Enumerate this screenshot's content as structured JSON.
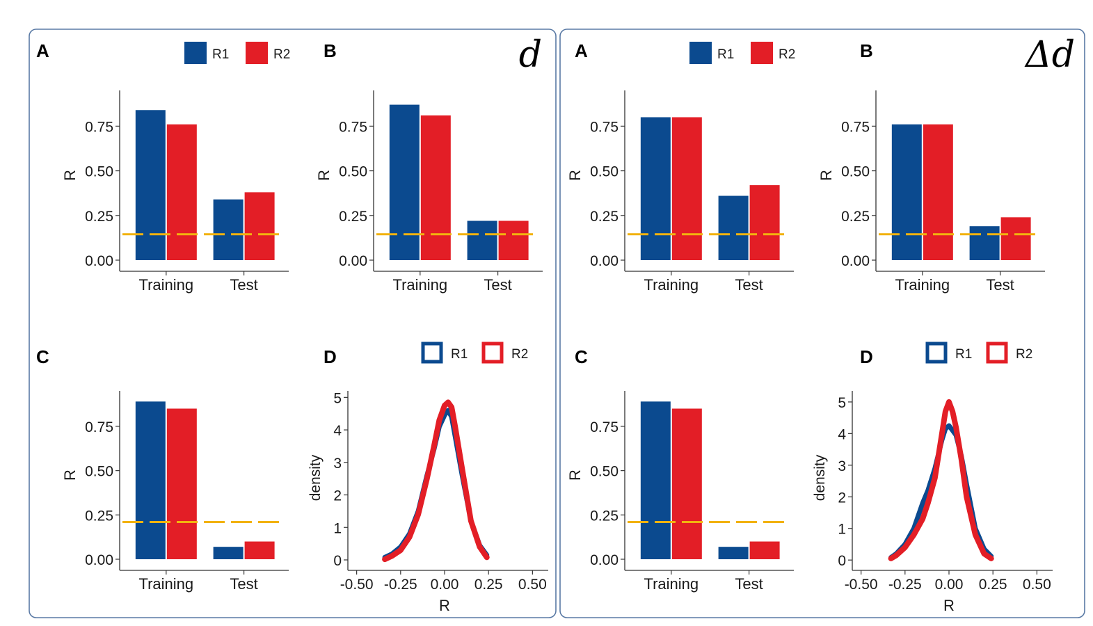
{
  "colors": {
    "r1": "#0b4a8f",
    "r2": "#e31e26",
    "threshold": "#f2b20f",
    "frame": "#5a7aa5",
    "axis": "#333333"
  },
  "groups": [
    {
      "symbol": "d"
    },
    {
      "symbol": "Δd"
    }
  ],
  "chart_data": [
    {
      "group": "d",
      "panel": "A",
      "type": "bar",
      "categories": [
        "Training",
        "Test"
      ],
      "series": [
        {
          "name": "R1",
          "values": [
            0.84,
            0.34
          ]
        },
        {
          "name": "R2",
          "values": [
            0.76,
            0.38
          ]
        }
      ],
      "threshold": 0.145,
      "xlabel": "",
      "ylabel": "R",
      "ylim": [
        0,
        0.95
      ],
      "yticks": [
        "0.00",
        "0.25",
        "0.50",
        "0.75"
      ],
      "legend": [
        "R1",
        "R2"
      ],
      "legend_placement": "top-right"
    },
    {
      "group": "d",
      "panel": "B",
      "type": "bar",
      "categories": [
        "Training",
        "Test"
      ],
      "series": [
        {
          "name": "R1",
          "values": [
            0.87,
            0.22
          ]
        },
        {
          "name": "R2",
          "values": [
            0.81,
            0.22
          ]
        }
      ],
      "threshold": 0.145,
      "xlabel": "",
      "ylabel": "R",
      "ylim": [
        0,
        0.95
      ],
      "yticks": [
        "0.00",
        "0.25",
        "0.50",
        "0.75"
      ]
    },
    {
      "group": "d",
      "panel": "C",
      "type": "bar",
      "categories": [
        "Training",
        "Test"
      ],
      "series": [
        {
          "name": "R1",
          "values": [
            0.89,
            0.07
          ]
        },
        {
          "name": "R2",
          "values": [
            0.85,
            0.1
          ]
        }
      ],
      "threshold": 0.21,
      "xlabel": "",
      "ylabel": "R",
      "ylim": [
        0,
        0.95
      ],
      "yticks": [
        "0.00",
        "0.25",
        "0.50",
        "0.75"
      ]
    },
    {
      "group": "d",
      "panel": "D",
      "type": "line",
      "series": [
        {
          "name": "R1",
          "x": [
            -0.34,
            -0.3,
            -0.25,
            -0.2,
            -0.15,
            -0.1,
            -0.06,
            -0.03,
            0,
            0.02,
            0.04,
            0.06,
            0.1,
            0.15,
            0.2,
            0.24
          ],
          "y": [
            0.08,
            0.18,
            0.4,
            0.8,
            1.5,
            2.6,
            3.4,
            4.1,
            4.45,
            4.6,
            4.4,
            3.8,
            2.6,
            1.2,
            0.45,
            0.15
          ]
        },
        {
          "name": "R2",
          "x": [
            -0.34,
            -0.3,
            -0.25,
            -0.2,
            -0.15,
            -0.1,
            -0.06,
            -0.03,
            0,
            0.02,
            0.04,
            0.06,
            0.1,
            0.15,
            0.2,
            0.24
          ],
          "y": [
            0.02,
            0.12,
            0.3,
            0.7,
            1.4,
            2.5,
            3.5,
            4.3,
            4.75,
            4.85,
            4.7,
            4.1,
            2.8,
            1.2,
            0.4,
            0.08
          ]
        }
      ],
      "xlabel": "R",
      "ylabel": "density",
      "xlim": [
        -0.55,
        0.55
      ],
      "ylim": [
        -0.15,
        5.2
      ],
      "xticks": [
        "-0.50",
        "-0.25",
        "0.00",
        "0.25",
        "0.50"
      ],
      "yticks": [
        "0",
        "1",
        "2",
        "3",
        "4",
        "5"
      ],
      "legend": [
        "R1",
        "R2"
      ],
      "legend_placement": "top-right"
    },
    {
      "group": "Δd",
      "panel": "A",
      "type": "bar",
      "categories": [
        "Training",
        "Test"
      ],
      "series": [
        {
          "name": "R1",
          "values": [
            0.8,
            0.36
          ]
        },
        {
          "name": "R2",
          "values": [
            0.8,
            0.42
          ]
        }
      ],
      "threshold": 0.145,
      "xlabel": "",
      "ylabel": "R",
      "ylim": [
        0,
        0.95
      ],
      "yticks": [
        "0.00",
        "0.25",
        "0.50",
        "0.75"
      ],
      "legend": [
        "R1",
        "R2"
      ],
      "legend_placement": "top-right"
    },
    {
      "group": "Δd",
      "panel": "B",
      "type": "bar",
      "categories": [
        "Training",
        "Test"
      ],
      "series": [
        {
          "name": "R1",
          "values": [
            0.76,
            0.19
          ]
        },
        {
          "name": "R2",
          "values": [
            0.76,
            0.24
          ]
        }
      ],
      "threshold": 0.145,
      "xlabel": "",
      "ylabel": "R",
      "ylim": [
        0,
        0.95
      ],
      "yticks": [
        "0.00",
        "0.25",
        "0.50",
        "0.75"
      ]
    },
    {
      "group": "Δd",
      "panel": "C",
      "type": "bar",
      "categories": [
        "Training",
        "Test"
      ],
      "series": [
        {
          "name": "R1",
          "values": [
            0.89,
            0.07
          ]
        },
        {
          "name": "R2",
          "values": [
            0.85,
            0.1
          ]
        }
      ],
      "threshold": 0.21,
      "xlabel": "",
      "ylabel": "R",
      "ylim": [
        0,
        0.95
      ],
      "yticks": [
        "0.00",
        "0.25",
        "0.50",
        "0.75"
      ]
    },
    {
      "group": "Δd",
      "panel": "D",
      "type": "line",
      "series": [
        {
          "name": "R1",
          "x": [
            -0.33,
            -0.3,
            -0.25,
            -0.2,
            -0.15,
            -0.12,
            -0.08,
            -0.04,
            -0.02,
            0,
            0.02,
            0.04,
            0.07,
            0.1,
            0.15,
            0.2,
            0.24
          ],
          "y": [
            0.08,
            0.2,
            0.5,
            1.0,
            1.8,
            2.2,
            2.9,
            3.8,
            4.15,
            4.25,
            4.1,
            3.95,
            3.3,
            2.4,
            1.0,
            0.35,
            0.12
          ]
        },
        {
          "name": "R2",
          "x": [
            -0.33,
            -0.3,
            -0.25,
            -0.2,
            -0.15,
            -0.12,
            -0.08,
            -0.04,
            -0.02,
            0,
            0.02,
            0.04,
            0.07,
            0.1,
            0.15,
            0.2,
            0.24
          ],
          "y": [
            0.05,
            0.15,
            0.4,
            0.8,
            1.3,
            1.8,
            2.6,
            4.0,
            4.7,
            5.0,
            4.7,
            4.2,
            3.2,
            2.0,
            0.8,
            0.2,
            0.05
          ]
        }
      ],
      "xlabel": "R",
      "ylabel": "density",
      "xlim": [
        -0.55,
        0.55
      ],
      "ylim": [
        -0.15,
        5.35
      ],
      "xticks": [
        "-0.50",
        "-0.25",
        "0.00",
        "0.25",
        "0.50"
      ],
      "yticks": [
        "0",
        "1",
        "2",
        "3",
        "4",
        "5"
      ],
      "legend": [
        "R1",
        "R2"
      ],
      "legend_placement": "top-right"
    }
  ]
}
